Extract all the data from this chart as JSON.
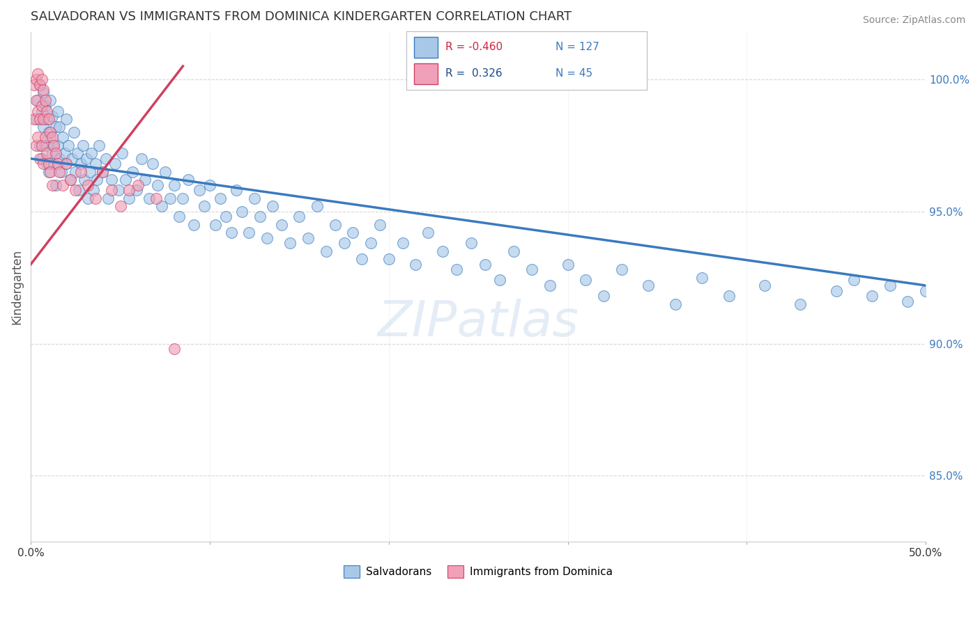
{
  "title": "SALVADORAN VS IMMIGRANTS FROM DOMINICA KINDERGARTEN CORRELATION CHART",
  "source": "Source: ZipAtlas.com",
  "xlabel_salvadoran": "Salvadorans",
  "xlabel_dominica": "Immigrants from Dominica",
  "ylabel": "Kindergarten",
  "xlim": [
    0.0,
    0.5
  ],
  "ylim": [
    0.825,
    1.018
  ],
  "xticks": [
    0.0,
    0.1,
    0.2,
    0.3,
    0.4,
    0.5
  ],
  "xtick_labels": [
    "0.0%",
    "",
    "",
    "",
    "",
    "50.0%"
  ],
  "yticks": [
    0.85,
    0.9,
    0.95,
    1.0
  ],
  "ytick_labels": [
    "85.0%",
    "90.0%",
    "95.0%",
    "100.0%"
  ],
  "R_blue": -0.46,
  "N_blue": 127,
  "R_pink": 0.326,
  "N_pink": 45,
  "blue_color": "#a8c8e8",
  "pink_color": "#f0a0b8",
  "blue_line_color": "#3a7abf",
  "pink_line_color": "#d04060",
  "watermark": "ZIPatlas",
  "blue_line_x0": 0.0,
  "blue_line_y0": 0.97,
  "blue_line_x1": 0.5,
  "blue_line_y1": 0.922,
  "pink_line_x0": 0.0,
  "pink_line_y0": 0.93,
  "pink_line_x1": 0.085,
  "pink_line_y1": 1.005,
  "blue_scatter_x": [
    0.003,
    0.004,
    0.005,
    0.005,
    0.006,
    0.006,
    0.007,
    0.007,
    0.008,
    0.008,
    0.009,
    0.009,
    0.01,
    0.01,
    0.011,
    0.011,
    0.012,
    0.012,
    0.013,
    0.013,
    0.014,
    0.014,
    0.015,
    0.015,
    0.016,
    0.016,
    0.017,
    0.018,
    0.019,
    0.02,
    0.02,
    0.021,
    0.022,
    0.023,
    0.024,
    0.025,
    0.026,
    0.027,
    0.028,
    0.029,
    0.03,
    0.031,
    0.032,
    0.033,
    0.034,
    0.035,
    0.036,
    0.037,
    0.038,
    0.04,
    0.042,
    0.043,
    0.045,
    0.047,
    0.049,
    0.051,
    0.053,
    0.055,
    0.057,
    0.059,
    0.062,
    0.064,
    0.066,
    0.068,
    0.071,
    0.073,
    0.075,
    0.078,
    0.08,
    0.083,
    0.085,
    0.088,
    0.091,
    0.094,
    0.097,
    0.1,
    0.103,
    0.106,
    0.109,
    0.112,
    0.115,
    0.118,
    0.122,
    0.125,
    0.128,
    0.132,
    0.135,
    0.14,
    0.145,
    0.15,
    0.155,
    0.16,
    0.165,
    0.17,
    0.175,
    0.18,
    0.185,
    0.19,
    0.195,
    0.2,
    0.208,
    0.215,
    0.222,
    0.23,
    0.238,
    0.246,
    0.254,
    0.262,
    0.27,
    0.28,
    0.29,
    0.3,
    0.31,
    0.32,
    0.33,
    0.345,
    0.36,
    0.375,
    0.39,
    0.41,
    0.43,
    0.45,
    0.46,
    0.47,
    0.48,
    0.49,
    0.5
  ],
  "blue_scatter_y": [
    0.985,
    0.992,
    0.998,
    0.975,
    0.988,
    0.97,
    0.982,
    0.995,
    0.975,
    0.99,
    0.985,
    0.968,
    0.98,
    0.965,
    0.978,
    0.992,
    0.972,
    0.986,
    0.968,
    0.975,
    0.982,
    0.96,
    0.975,
    0.988,
    0.97,
    0.982,
    0.965,
    0.978,
    0.972,
    0.985,
    0.968,
    0.975,
    0.962,
    0.97,
    0.98,
    0.965,
    0.972,
    0.958,
    0.968,
    0.975,
    0.962,
    0.97,
    0.955,
    0.965,
    0.972,
    0.958,
    0.968,
    0.962,
    0.975,
    0.965,
    0.97,
    0.955,
    0.962,
    0.968,
    0.958,
    0.972,
    0.962,
    0.955,
    0.965,
    0.958,
    0.97,
    0.962,
    0.955,
    0.968,
    0.96,
    0.952,
    0.965,
    0.955,
    0.96,
    0.948,
    0.955,
    0.962,
    0.945,
    0.958,
    0.952,
    0.96,
    0.945,
    0.955,
    0.948,
    0.942,
    0.958,
    0.95,
    0.942,
    0.955,
    0.948,
    0.94,
    0.952,
    0.945,
    0.938,
    0.948,
    0.94,
    0.952,
    0.935,
    0.945,
    0.938,
    0.942,
    0.932,
    0.938,
    0.945,
    0.932,
    0.938,
    0.93,
    0.942,
    0.935,
    0.928,
    0.938,
    0.93,
    0.924,
    0.935,
    0.928,
    0.922,
    0.93,
    0.924,
    0.918,
    0.928,
    0.922,
    0.915,
    0.925,
    0.918,
    0.922,
    0.915,
    0.92,
    0.924,
    0.918,
    0.922,
    0.916,
    0.92
  ],
  "pink_scatter_x": [
    0.002,
    0.002,
    0.003,
    0.003,
    0.003,
    0.004,
    0.004,
    0.004,
    0.005,
    0.005,
    0.005,
    0.006,
    0.006,
    0.006,
    0.007,
    0.007,
    0.007,
    0.008,
    0.008,
    0.009,
    0.009,
    0.01,
    0.01,
    0.011,
    0.011,
    0.012,
    0.012,
    0.013,
    0.014,
    0.015,
    0.016,
    0.018,
    0.02,
    0.022,
    0.025,
    0.028,
    0.032,
    0.036,
    0.04,
    0.045,
    0.05,
    0.055,
    0.06,
    0.07,
    0.08
  ],
  "pink_scatter_y": [
    0.998,
    0.985,
    1.0,
    0.992,
    0.975,
    1.002,
    0.988,
    0.978,
    0.998,
    0.985,
    0.97,
    1.0,
    0.99,
    0.975,
    0.996,
    0.985,
    0.968,
    0.992,
    0.978,
    0.988,
    0.972,
    0.985,
    0.968,
    0.98,
    0.965,
    0.978,
    0.96,
    0.975,
    0.972,
    0.968,
    0.965,
    0.96,
    0.968,
    0.962,
    0.958,
    0.965,
    0.96,
    0.955,
    0.965,
    0.958,
    0.952,
    0.958,
    0.96,
    0.955,
    0.898
  ]
}
